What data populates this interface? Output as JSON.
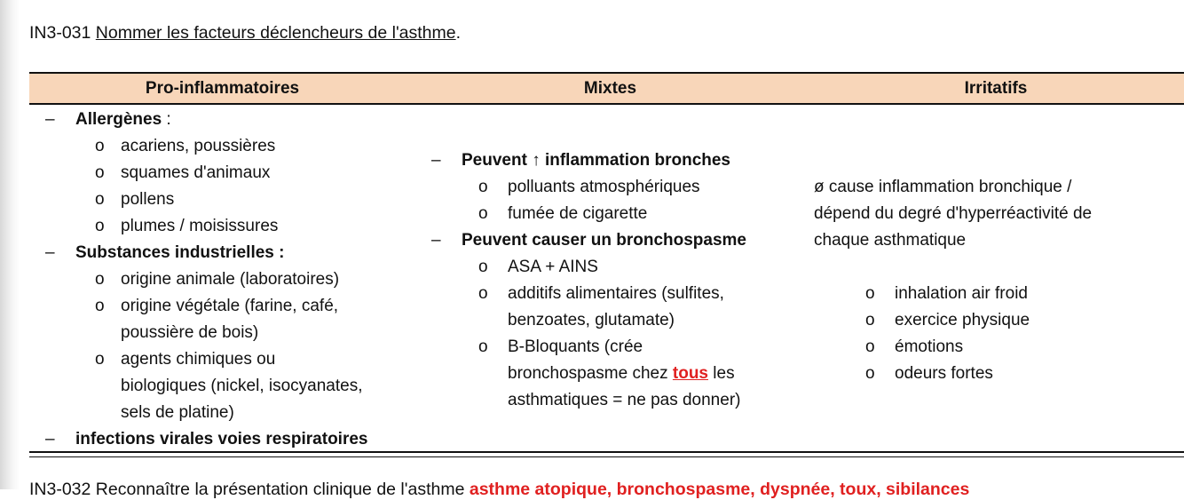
{
  "title": {
    "code": "IN3-031",
    "text": "Nommer les facteurs déclencheurs de l'asthme",
    "period": "."
  },
  "headers": [
    "Pro-inflammatoires",
    "Mixtes",
    "Irritatifs"
  ],
  "pro": {
    "allergenes": "Allergènes",
    "allergenes_colon": " :",
    "allergenes_items": [
      "acariens, poussières",
      "squames d'animaux",
      "pollens",
      "plumes / moisissures"
    ],
    "industrielles": "Substances industrielles :",
    "industrielles_items": [
      "origine animale (laboratoires)",
      "origine végétale (farine, café,",
      "poussière de bois)",
      "agents chimiques ou",
      "biologiques (nickel, isocyanates,",
      "sels de platine)"
    ],
    "infections": "infections virales voies respiratoires"
  },
  "mixtes": {
    "inflammation": "Peuvent ↑ inflammation bronches",
    "inflammation_items": [
      "polluants atmosphériques",
      "fumée de cigarette"
    ],
    "bronchospasme": "Peuvent causer un bronchospasme",
    "bronchospasme_items": [
      "ASA + AINS",
      "additifs alimentaires (sulfites,",
      "benzoates, glutamate)",
      "B-Bloquants (crée",
      "bronchospasme chez ",
      "tous",
      " les",
      "asthmatiques = ne pas donner)"
    ]
  },
  "irritatifs": {
    "text": [
      "ø cause inflammation bronchique /",
      "dépend du degré d'hyperréactivité de",
      "chaque asthmatique"
    ],
    "items": [
      "inhalation air froid",
      "exercice physique",
      "émotions",
      "odeurs fortes"
    ]
  },
  "bullet_dash": "–",
  "bullet_circle": "o",
  "next": {
    "text": "IN3-032 Reconnaître la présentation clinique de l'asthme",
    "red": "asthme atopique, bronchospasme, dyspnée, toux, sibilances"
  },
  "colors": {
    "header_bg": "#f8d6b9",
    "emphasis": "#e02020"
  }
}
